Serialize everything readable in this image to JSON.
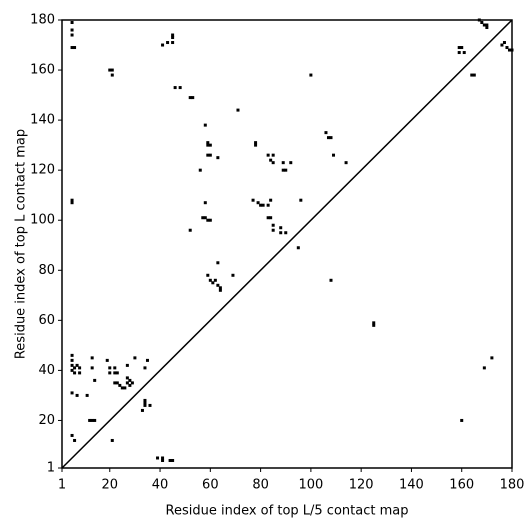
{
  "chart_data": {
    "type": "scatter",
    "xlabel": "Residue index of top L/5 contact map",
    "ylabel": "Residue index of top L contact map",
    "xlim": [
      1,
      180
    ],
    "ylim": [
      1,
      180
    ],
    "xticks": [
      1,
      20,
      40,
      60,
      80,
      100,
      120,
      140,
      160,
      180
    ],
    "yticks": [
      1,
      20,
      40,
      60,
      80,
      100,
      120,
      140,
      160,
      180
    ],
    "color": "#000000",
    "diagonal": true,
    "x": [
      5,
      5,
      5,
      5,
      6,
      20,
      21,
      21,
      41,
      43,
      45,
      45,
      45,
      46,
      48,
      52,
      53,
      5,
      5,
      56,
      58,
      59,
      59,
      60,
      59,
      60,
      63,
      58,
      57,
      58,
      59,
      60,
      71,
      78,
      78,
      77,
      79,
      80,
      81,
      83,
      84,
      83,
      84,
      85,
      85,
      83,
      84,
      85,
      85,
      88,
      88,
      90,
      89,
      89,
      90,
      92,
      96,
      95,
      100,
      106,
      107,
      108,
      109,
      114,
      52,
      63,
      59,
      60,
      61,
      62,
      63,
      64,
      64,
      69,
      108,
      125,
      125,
      5,
      5,
      5,
      5,
      6,
      7,
      8,
      8,
      6,
      5,
      7,
      11,
      13,
      13,
      12,
      13,
      14,
      14,
      5,
      6,
      19,
      20,
      20,
      21,
      22,
      22,
      23,
      23,
      22,
      24,
      25,
      26,
      27,
      27,
      28,
      27,
      28,
      29,
      30,
      33,
      34,
      34,
      34,
      35,
      34,
      36,
      39,
      41,
      41,
      44,
      45,
      160,
      164,
      165,
      159,
      160,
      159,
      161,
      167,
      168,
      169,
      170,
      170,
      176,
      177,
      178,
      179,
      180,
      172,
      169
    ],
    "values": [
      179,
      176,
      174,
      169,
      169,
      160,
      160,
      158,
      170,
      171,
      171,
      173,
      174,
      153,
      153,
      149,
      149,
      107,
      108,
      120,
      138,
      131,
      130,
      130,
      126,
      126,
      125,
      107,
      101,
      101,
      100,
      100,
      144,
      131,
      130,
      108,
      107,
      106,
      106,
      106,
      108,
      126,
      124,
      123,
      126,
      101,
      101,
      98,
      96,
      97,
      95,
      95,
      123,
      120,
      120,
      123,
      108,
      89,
      158,
      135,
      133,
      133,
      126,
      123,
      96,
      83,
      78,
      76,
      75,
      76,
      74,
      72,
      73,
      78,
      76,
      59,
      58,
      46,
      44,
      42,
      40,
      41,
      42,
      41,
      39,
      39,
      31,
      30,
      30,
      45,
      41,
      20,
      20,
      20,
      36,
      14,
      12,
      44,
      41,
      39,
      12,
      41,
      39,
      39,
      35,
      35,
      34,
      33,
      33,
      35,
      37,
      36,
      42,
      34,
      35,
      45,
      24,
      28,
      27,
      26,
      44,
      41,
      26,
      5,
      5,
      4,
      4,
      4,
      20,
      158,
      158,
      169,
      169,
      167,
      167,
      180,
      179,
      178,
      178,
      177,
      170,
      171,
      169,
      168,
      168,
      45,
      41
    ]
  }
}
